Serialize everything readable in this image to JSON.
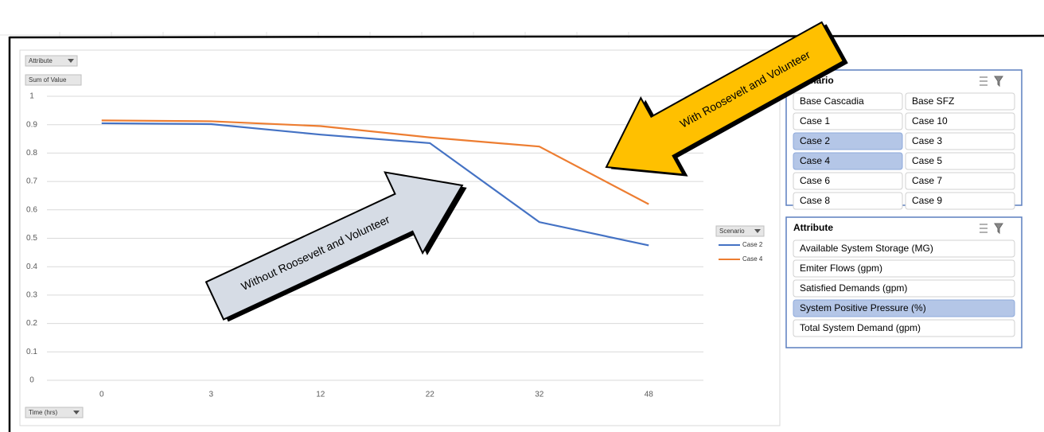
{
  "chart_data": {
    "type": "line",
    "categories": [
      "0",
      "3",
      "12",
      "22",
      "32",
      "48"
    ],
    "series": [
      {
        "name": "Case 2",
        "color": "#4472c4",
        "values": [
          0.905,
          0.902,
          0.865,
          0.835,
          0.557,
          0.475
        ]
      },
      {
        "name": "Case 4",
        "color": "#ed7d31",
        "values": [
          0.915,
          0.912,
          0.895,
          0.855,
          0.823,
          0.62
        ]
      }
    ],
    "ylim": [
      0,
      1
    ],
    "yticks": [
      0,
      0.1,
      0.2,
      0.3,
      0.4,
      0.5,
      0.6,
      0.7,
      0.8,
      0.9,
      1
    ],
    "grid": true,
    "field_buttons": {
      "filter": "Attribute",
      "values": "Sum of Value",
      "legend": "Scenario",
      "axis": "Time (hrs)"
    }
  },
  "annotations": [
    "Without Roosevelt and Volunteer",
    "With Roosevelt and Volunteer"
  ],
  "slicers": [
    {
      "title": "Scenario",
      "columns": 2,
      "items": [
        {
          "label": "Base Cascadia",
          "selected": false
        },
        {
          "label": "Base SFZ",
          "selected": false
        },
        {
          "label": "Case 1",
          "selected": false
        },
        {
          "label": "Case 10",
          "selected": false
        },
        {
          "label": "Case 2",
          "selected": true
        },
        {
          "label": "Case 3",
          "selected": false
        },
        {
          "label": "Case 4",
          "selected": true
        },
        {
          "label": "Case 5",
          "selected": false
        },
        {
          "label": "Case 6",
          "selected": false
        },
        {
          "label": "Case 7",
          "selected": false
        },
        {
          "label": "Case 8",
          "selected": false
        },
        {
          "label": "Case 9",
          "selected": false
        }
      ]
    },
    {
      "title": "Attribute",
      "columns": 1,
      "items": [
        {
          "label": "Available System Storage (MG)",
          "selected": false
        },
        {
          "label": "Emiter Flows (gpm)",
          "selected": false
        },
        {
          "label": "Satisfied Demands (gpm)",
          "selected": false
        },
        {
          "label": "System Positive Pressure (%)",
          "selected": true
        },
        {
          "label": "Total System Demand (gpm)",
          "selected": false
        }
      ]
    }
  ]
}
